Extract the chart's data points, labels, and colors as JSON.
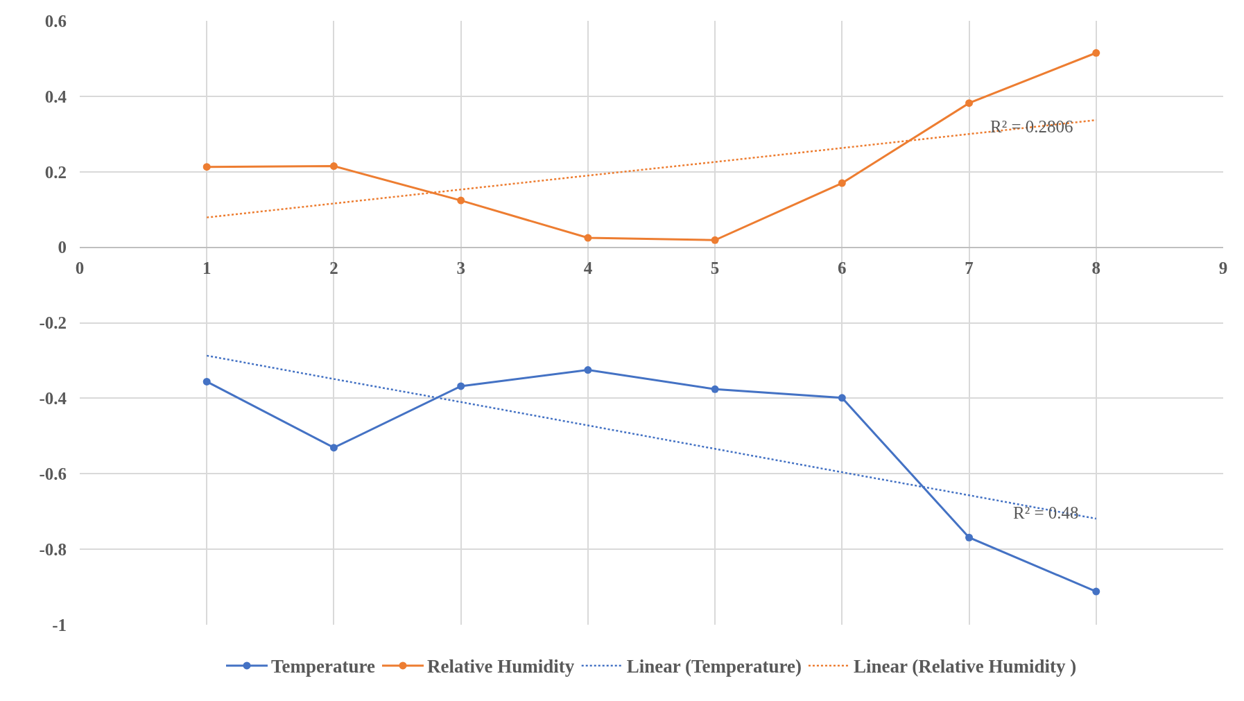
{
  "chart_data": {
    "type": "line",
    "x": [
      1,
      2,
      3,
      4,
      5,
      6,
      7,
      8
    ],
    "series": [
      {
        "name": "Temperature",
        "color": "#4472c4",
        "values": [
          -0.356,
          -0.531,
          -0.368,
          -0.325,
          -0.376,
          -0.399,
          -0.769,
          -0.912
        ],
        "marker": "circle",
        "line_style": "solid"
      },
      {
        "name": "Relative Humidity",
        "color": "#ed7d31",
        "values": [
          0.213,
          0.215,
          0.124,
          0.025,
          0.019,
          0.17,
          0.382,
          0.515
        ],
        "marker": "circle",
        "line_style": "solid"
      },
      {
        "name": "Linear (Temperature)",
        "color": "#4472c4",
        "values": [
          -0.287,
          -0.349,
          -0.41,
          -0.472,
          -0.534,
          -0.596,
          -0.657,
          -0.719
        ],
        "marker": "none",
        "line_style": "dotted"
      },
      {
        "name": "Linear (Relative Humidity )",
        "color": "#ed7d31",
        "values": [
          0.079,
          0.116,
          0.153,
          0.19,
          0.226,
          0.263,
          0.3,
          0.337
        ],
        "marker": "none",
        "line_style": "dotted"
      }
    ],
    "xlim": [
      0,
      9
    ],
    "xticks": [
      0,
      1,
      2,
      3,
      4,
      5,
      6,
      7,
      8,
      9
    ],
    "ylim": [
      -1,
      0.6
    ],
    "yticks": [
      -1,
      -0.8,
      -0.6,
      -0.4,
      -0.2,
      0,
      0.2,
      0.4,
      0.6
    ],
    "annotations": [
      "R² = 0.2806",
      "R² = 0.48"
    ],
    "grid": true,
    "legend": "bottom"
  }
}
